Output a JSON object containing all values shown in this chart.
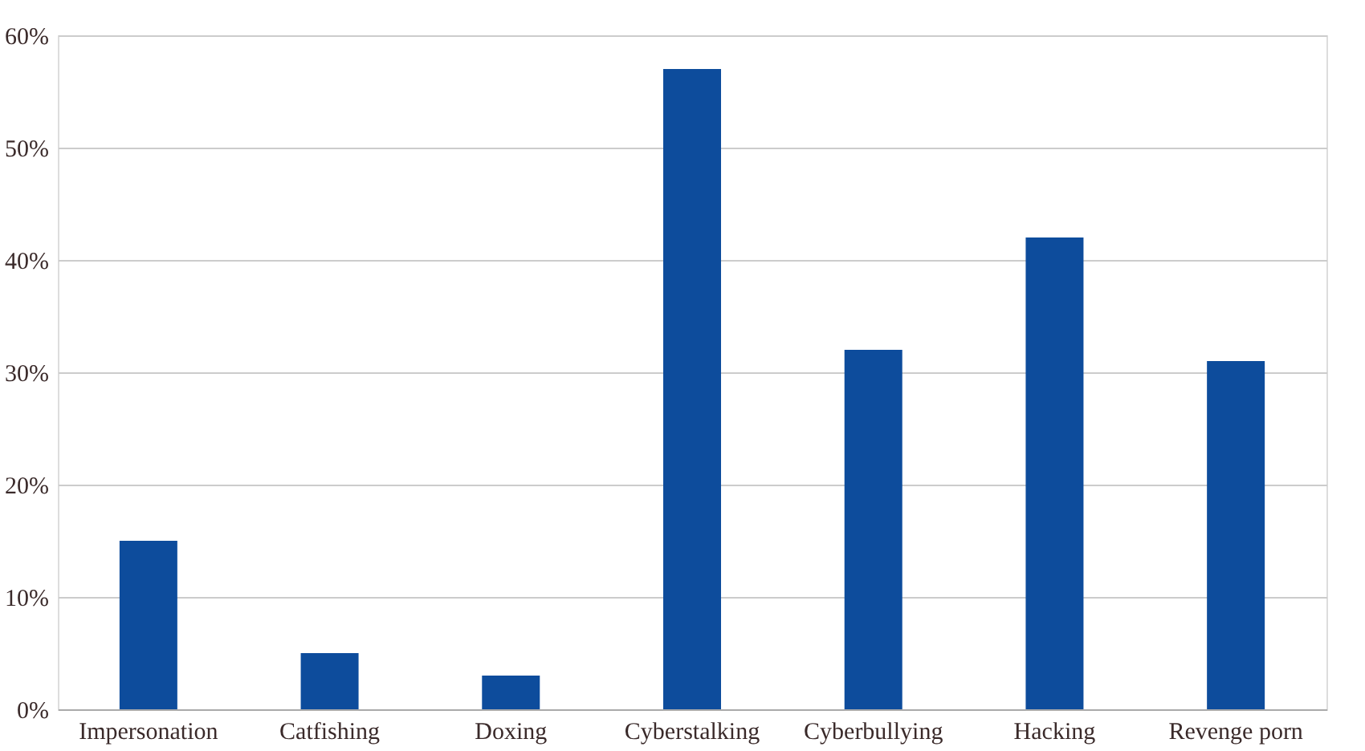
{
  "chart_data": {
    "type": "bar",
    "categories": [
      "Impersonation",
      "Catfishing",
      "Doxing",
      "Cyberstalking",
      "Cyberbullying",
      "Hacking",
      "Revenge porn"
    ],
    "values": [
      15,
      5,
      3,
      57,
      32,
      42,
      31
    ],
    "color": "#0d4c9c",
    "ylim": [
      0,
      60
    ],
    "yticks": [
      {
        "value": 0,
        "label": "0%"
      },
      {
        "value": 10,
        "label": "10%"
      },
      {
        "value": 20,
        "label": "20%"
      },
      {
        "value": 30,
        "label": "30%"
      },
      {
        "value": 40,
        "label": "40%"
      },
      {
        "value": 50,
        "label": "50%"
      },
      {
        "value": 60,
        "label": "60%"
      }
    ],
    "grid": "y"
  }
}
